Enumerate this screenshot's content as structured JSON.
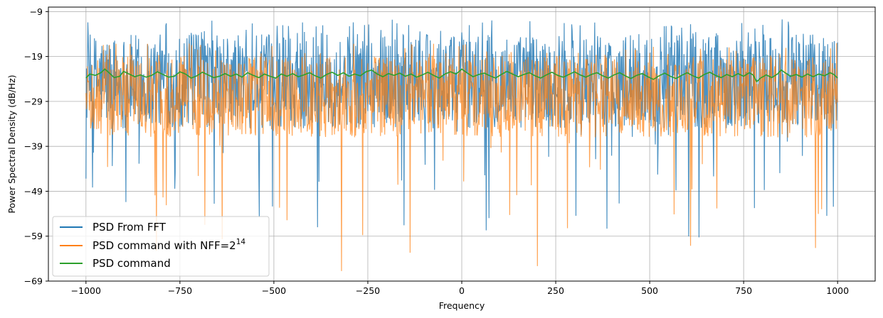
{
  "chart_data": {
    "type": "line",
    "title": "",
    "xlabel": "Frequency",
    "ylabel": "Power Spectral Density (dB/Hz)",
    "xlim": [
      -1100,
      1100
    ],
    "ylim": [
      -69,
      -8
    ],
    "x_ticks": [
      -1000,
      -750,
      -500,
      -250,
      0,
      250,
      500,
      750,
      1000
    ],
    "x_tick_labels": [
      "−1000",
      "−750",
      "−500",
      "−250",
      "0",
      "250",
      "500",
      "750",
      "1000"
    ],
    "y_ticks": [
      -9,
      -19,
      -29,
      -39,
      -49,
      -59,
      -69
    ],
    "y_tick_labels": [
      "−9",
      "−19",
      "−29",
      "−39",
      "−49",
      "−59",
      "−69"
    ],
    "grid": true,
    "legend_position": "lower-left",
    "series": [
      {
        "name": "PSD From FFT",
        "color": "#1f77b4",
        "style": "dense noise",
        "x_range": [
          -1000,
          1000
        ],
        "band_low": -35,
        "band_high": -14,
        "peak_max": -10.5,
        "dip_min": -59.5
      },
      {
        "name": "PSD command with NFF=2",
        "name_superscript": "14",
        "color": "#ff7f0e",
        "style": "dense noise",
        "x_range": [
          -1000,
          1000
        ],
        "band_low": -37,
        "band_high": -19,
        "peak_max": -16,
        "dip_min": -67
      },
      {
        "name": "PSD command",
        "color": "#2ca02c",
        "style": "smooth",
        "x_range": [
          -1000,
          1000
        ],
        "points": [
          [
            -1000,
            -23.8
          ],
          [
            -990,
            -22.9
          ],
          [
            -975,
            -23.2
          ],
          [
            -960,
            -22.6
          ],
          [
            -950,
            -21.8
          ],
          [
            -940,
            -22.5
          ],
          [
            -925,
            -23.7
          ],
          [
            -910,
            -23.4
          ],
          [
            -900,
            -22.3
          ],
          [
            -885,
            -22.9
          ],
          [
            -870,
            -23.5
          ],
          [
            -855,
            -23.1
          ],
          [
            -840,
            -23.6
          ],
          [
            -825,
            -23.2
          ],
          [
            -810,
            -22.4
          ],
          [
            -795,
            -23.0
          ],
          [
            -780,
            -23.6
          ],
          [
            -765,
            -23.4
          ],
          [
            -750,
            -22.4
          ],
          [
            -735,
            -22.9
          ],
          [
            -720,
            -23.8
          ],
          [
            -705,
            -23.3
          ],
          [
            -690,
            -22.5
          ],
          [
            -675,
            -23.1
          ],
          [
            -660,
            -23.7
          ],
          [
            -645,
            -23.4
          ],
          [
            -630,
            -22.8
          ],
          [
            -615,
            -23.4
          ],
          [
            -600,
            -22.9
          ],
          [
            -585,
            -23.6
          ],
          [
            -570,
            -22.6
          ],
          [
            -555,
            -23.2
          ],
          [
            -540,
            -23.7
          ],
          [
            -525,
            -22.9
          ],
          [
            -510,
            -23.4
          ],
          [
            -495,
            -23.8
          ],
          [
            -480,
            -22.9
          ],
          [
            -465,
            -23.4
          ],
          [
            -450,
            -22.8
          ],
          [
            -435,
            -23.5
          ],
          [
            -420,
            -23.1
          ],
          [
            -405,
            -22.6
          ],
          [
            -390,
            -23.3
          ],
          [
            -375,
            -23.8
          ],
          [
            -360,
            -23.0
          ],
          [
            -345,
            -22.5
          ],
          [
            -330,
            -23.2
          ],
          [
            -315,
            -22.6
          ],
          [
            -300,
            -23.4
          ],
          [
            -285,
            -22.9
          ],
          [
            -270,
            -23.3
          ],
          [
            -255,
            -22.4
          ],
          [
            -240,
            -22.0
          ],
          [
            -225,
            -22.9
          ],
          [
            -210,
            -23.5
          ],
          [
            -195,
            -22.8
          ],
          [
            -180,
            -23.2
          ],
          [
            -165,
            -22.7
          ],
          [
            -150,
            -23.4
          ],
          [
            -135,
            -22.9
          ],
          [
            -120,
            -23.6
          ],
          [
            -105,
            -23.1
          ],
          [
            -90,
            -22.5
          ],
          [
            -75,
            -23.2
          ],
          [
            -60,
            -23.8
          ],
          [
            -45,
            -22.9
          ],
          [
            -30,
            -22.4
          ],
          [
            -15,
            -22.9
          ],
          [
            0,
            -21.8
          ],
          [
            15,
            -22.7
          ],
          [
            30,
            -23.5
          ],
          [
            45,
            -23.0
          ],
          [
            60,
            -22.7
          ],
          [
            75,
            -23.3
          ],
          [
            90,
            -23.8
          ],
          [
            105,
            -23.0
          ],
          [
            120,
            -22.3
          ],
          [
            135,
            -22.9
          ],
          [
            150,
            -23.5
          ],
          [
            165,
            -23.0
          ],
          [
            180,
            -22.6
          ],
          [
            195,
            -23.3
          ],
          [
            210,
            -23.8
          ],
          [
            225,
            -23.1
          ],
          [
            240,
            -22.5
          ],
          [
            255,
            -23.2
          ],
          [
            270,
            -23.6
          ],
          [
            285,
            -23.0
          ],
          [
            300,
            -22.4
          ],
          [
            315,
            -23.1
          ],
          [
            330,
            -23.6
          ],
          [
            345,
            -23.0
          ],
          [
            360,
            -22.6
          ],
          [
            375,
            -23.3
          ],
          [
            390,
            -23.8
          ],
          [
            405,
            -23.1
          ],
          [
            420,
            -22.6
          ],
          [
            435,
            -23.3
          ],
          [
            450,
            -23.9
          ],
          [
            465,
            -23.2
          ],
          [
            480,
            -22.8
          ],
          [
            495,
            -23.5
          ],
          [
            510,
            -24.1
          ],
          [
            525,
            -23.3
          ],
          [
            540,
            -22.7
          ],
          [
            555,
            -23.4
          ],
          [
            570,
            -23.9
          ],
          [
            585,
            -23.2
          ],
          [
            600,
            -22.6
          ],
          [
            615,
            -23.3
          ],
          [
            630,
            -23.8
          ],
          [
            645,
            -23.0
          ],
          [
            660,
            -22.5
          ],
          [
            675,
            -23.2
          ],
          [
            690,
            -23.7
          ],
          [
            705,
            -23.0
          ],
          [
            720,
            -23.5
          ],
          [
            735,
            -22.8
          ],
          [
            750,
            -23.4
          ],
          [
            765,
            -22.6
          ],
          [
            775,
            -23.1
          ],
          [
            785,
            -24.6
          ],
          [
            795,
            -23.8
          ],
          [
            810,
            -23.1
          ],
          [
            825,
            -23.7
          ],
          [
            840,
            -22.9
          ],
          [
            850,
            -22.0
          ],
          [
            860,
            -22.6
          ],
          [
            875,
            -23.4
          ],
          [
            890,
            -23.0
          ],
          [
            905,
            -23.6
          ],
          [
            920,
            -22.9
          ],
          [
            935,
            -23.5
          ],
          [
            950,
            -22.9
          ],
          [
            965,
            -23.3
          ],
          [
            980,
            -22.6
          ],
          [
            990,
            -23.0
          ],
          [
            1000,
            -23.8
          ]
        ]
      }
    ]
  }
}
